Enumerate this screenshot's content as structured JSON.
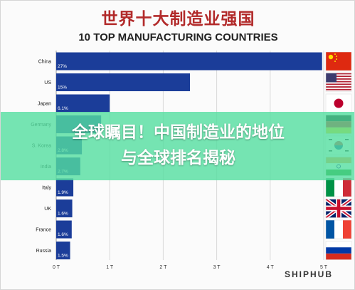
{
  "header": {
    "title_cn": "世界十大制造业强国",
    "title_en": "10 TOP MANUFACTURING COUNTRIES"
  },
  "overlay": {
    "line1": "全球瞩目！中国制造业的地位",
    "line2": "与全球排名揭秘"
  },
  "brand": "SHIPHUB",
  "colors": {
    "bar": "#1b3d99",
    "title_cn": "#b22a2a",
    "overlay": "#54dea0"
  },
  "chart_data": {
    "type": "bar",
    "orientation": "horizontal",
    "categories": [
      "China",
      "US",
      "Japan",
      "Germany",
      "S. Korea",
      "India",
      "Italy",
      "UK",
      "France",
      "Russia"
    ],
    "values": [
      4.97,
      2.5,
      1.0,
      0.84,
      0.48,
      0.45,
      0.32,
      0.3,
      0.29,
      0.26
    ],
    "value_labels": [
      "27%",
      "15%",
      "6.1%",
      "",
      "2.8%",
      "2.7%",
      "1.9%",
      "1.6%",
      "1.6%",
      "1.5%"
    ],
    "flags": [
      "china-flag-icon",
      "us-flag-icon",
      "japan-flag-icon",
      "germany-flag-icon",
      "korea-flag-icon",
      "india-flag-icon",
      "italy-flag-icon",
      "uk-flag-icon",
      "france-flag-icon",
      "russia-flag-icon"
    ],
    "xticks": [
      "0 T",
      "1 T",
      "2 T",
      "3 T",
      "4 T",
      "5 T"
    ],
    "xlim": [
      0,
      5
    ],
    "grid": true,
    "title": "10 TOP MANUFACTURING COUNTRIES"
  }
}
